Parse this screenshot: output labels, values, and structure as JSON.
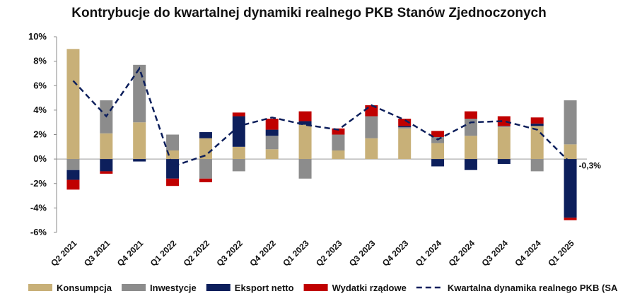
{
  "chart_data": {
    "type": "bar",
    "stacked": true,
    "title": "Kontrybucje do kwartalnej dynamiki realnego PKB Stanów Zjednoczonych",
    "xlabel": "",
    "ylabel": "",
    "ylim": [
      -6,
      10
    ],
    "yticks": [
      "10%",
      "8%",
      "6%",
      "4%",
      "2%",
      "0%",
      "-2%",
      "-4%",
      "-6%"
    ],
    "ytick_values": [
      10,
      8,
      6,
      4,
      2,
      0,
      -2,
      -4,
      -6
    ],
    "grid": false,
    "legend_position": "bottom",
    "categories": [
      "Q2 2021",
      "Q3 2021",
      "Q4 2021",
      "Q1 2022",
      "Q2 2022",
      "Q3 2022",
      "Q4 2022",
      "Q1 2023",
      "Q2 2023",
      "Q3 2023",
      "Q4 2023",
      "Q1 2024",
      "Q2 2024",
      "Q3 2024",
      "Q4 2024",
      "Q1 2025"
    ],
    "series": [
      {
        "name": "Konsumpcja",
        "kind": "bar",
        "color": "#c8b078",
        "values": [
          9.0,
          2.1,
          3.0,
          0.7,
          1.7,
          1.0,
          0.8,
          2.8,
          0.7,
          1.7,
          2.5,
          1.3,
          1.9,
          2.6,
          2.7,
          1.2
        ]
      },
      {
        "name": "Inwestycje",
        "kind": "bar",
        "color": "#8c8c8c",
        "values": [
          -0.9,
          2.7,
          4.7,
          1.3,
          -1.6,
          -1.0,
          1.1,
          -1.6,
          1.3,
          1.8,
          0.1,
          0.5,
          1.4,
          0.1,
          -1.0,
          3.6
        ]
      },
      {
        "name": "Eksport netto",
        "kind": "bar",
        "color": "#0d1f5c",
        "values": [
          -0.8,
          -1.0,
          -0.2,
          -1.6,
          0.5,
          2.5,
          0.5,
          0.3,
          0.0,
          0.0,
          0.1,
          -0.6,
          -0.9,
          -0.4,
          0.2,
          -4.8
        ]
      },
      {
        "name": "Wydatki rządowe",
        "kind": "bar",
        "color": "#c00000",
        "values": [
          -0.8,
          -0.2,
          0.0,
          -0.6,
          -0.3,
          0.3,
          0.9,
          0.8,
          0.5,
          0.9,
          0.6,
          0.5,
          0.6,
          0.8,
          0.5,
          -0.2
        ]
      },
      {
        "name": "Kwartalna dynamika realnego PKB (SAAR)",
        "kind": "line",
        "style": "dashed",
        "color": "#0d1f5c",
        "values": [
          6.4,
          3.5,
          7.4,
          -0.6,
          0.3,
          2.7,
          3.4,
          2.8,
          2.4,
          4.4,
          3.2,
          1.6,
          3.0,
          3.1,
          2.4,
          -0.3
        ]
      }
    ],
    "annotations": [
      {
        "category": "Q1 2025",
        "text": "-0,3%"
      }
    ]
  }
}
